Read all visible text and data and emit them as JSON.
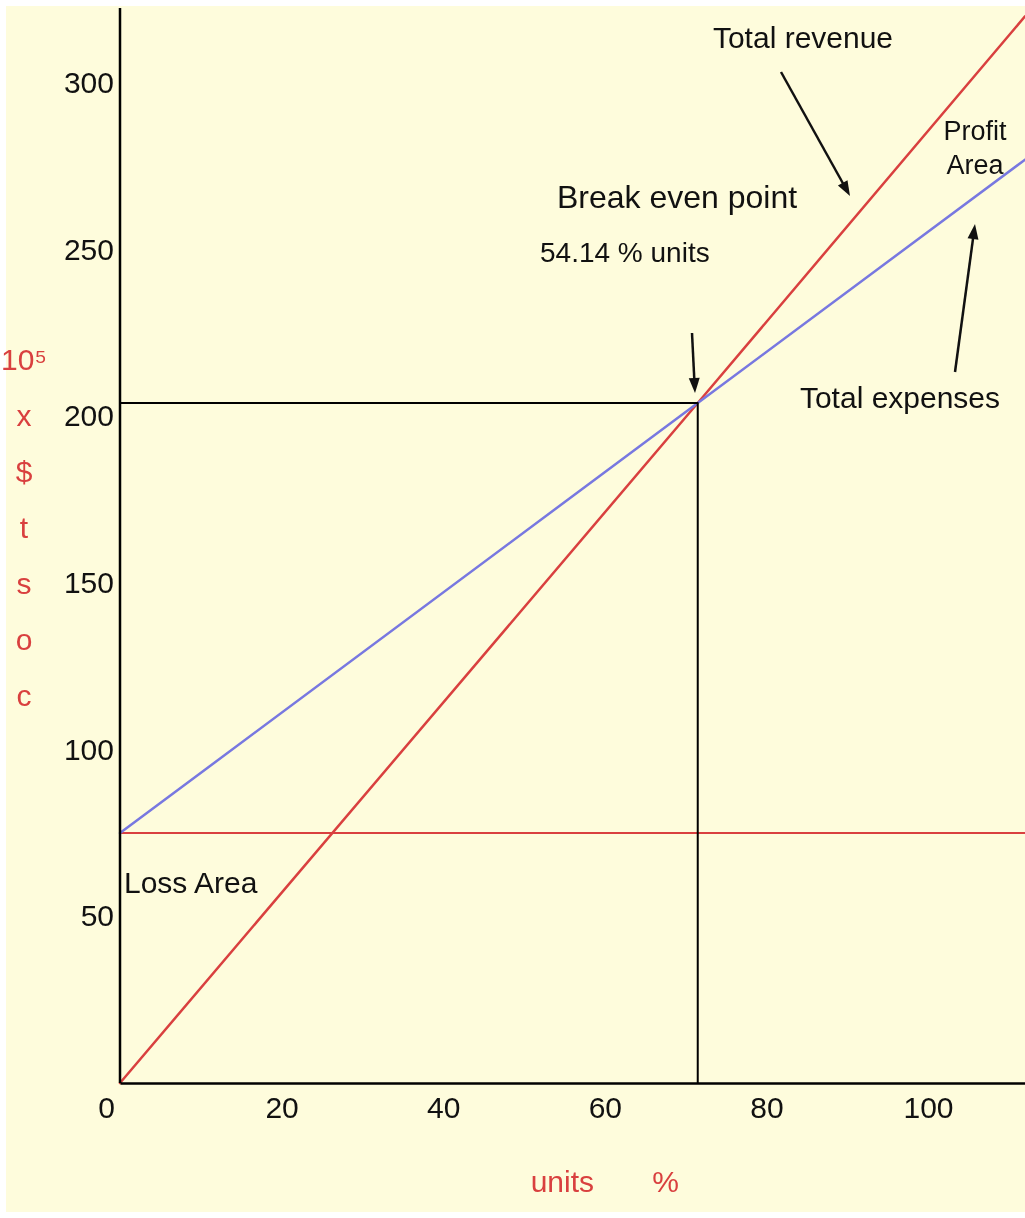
{
  "chart_data": {
    "type": "line",
    "xlabel": "units %",
    "ylabel": "10⁵ x $ t s o c",
    "xlim": [
      0,
      112
    ],
    "ylim": [
      0,
      322.5
    ],
    "xticks": [
      0,
      20,
      40,
      60,
      80,
      100
    ],
    "yticks": [
      50,
      100,
      150,
      200,
      250,
      300
    ],
    "series": [
      {
        "name": "Total revenue",
        "color": "#d9403f",
        "x": [
          0,
          71.5,
          112
        ],
        "values": [
          0,
          204,
          320
        ]
      },
      {
        "name": "Total expenses",
        "color": "#7878e0",
        "x": [
          0,
          71.5,
          112
        ],
        "values": [
          75,
          204,
          277
        ]
      },
      {
        "color": "#000000",
        "x": [
          0,
          71.5,
          71.5
        ],
        "values": [
          204,
          204,
          0
        ]
      }
    ],
    "ref_lines": [
      {
        "axis": "y",
        "value": 75,
        "color": "#d9403f"
      }
    ],
    "annotations": [
      "Break even point",
      "54.14 % units",
      "Profit Area",
      "Loss Area"
    ],
    "grid": false
  }
}
